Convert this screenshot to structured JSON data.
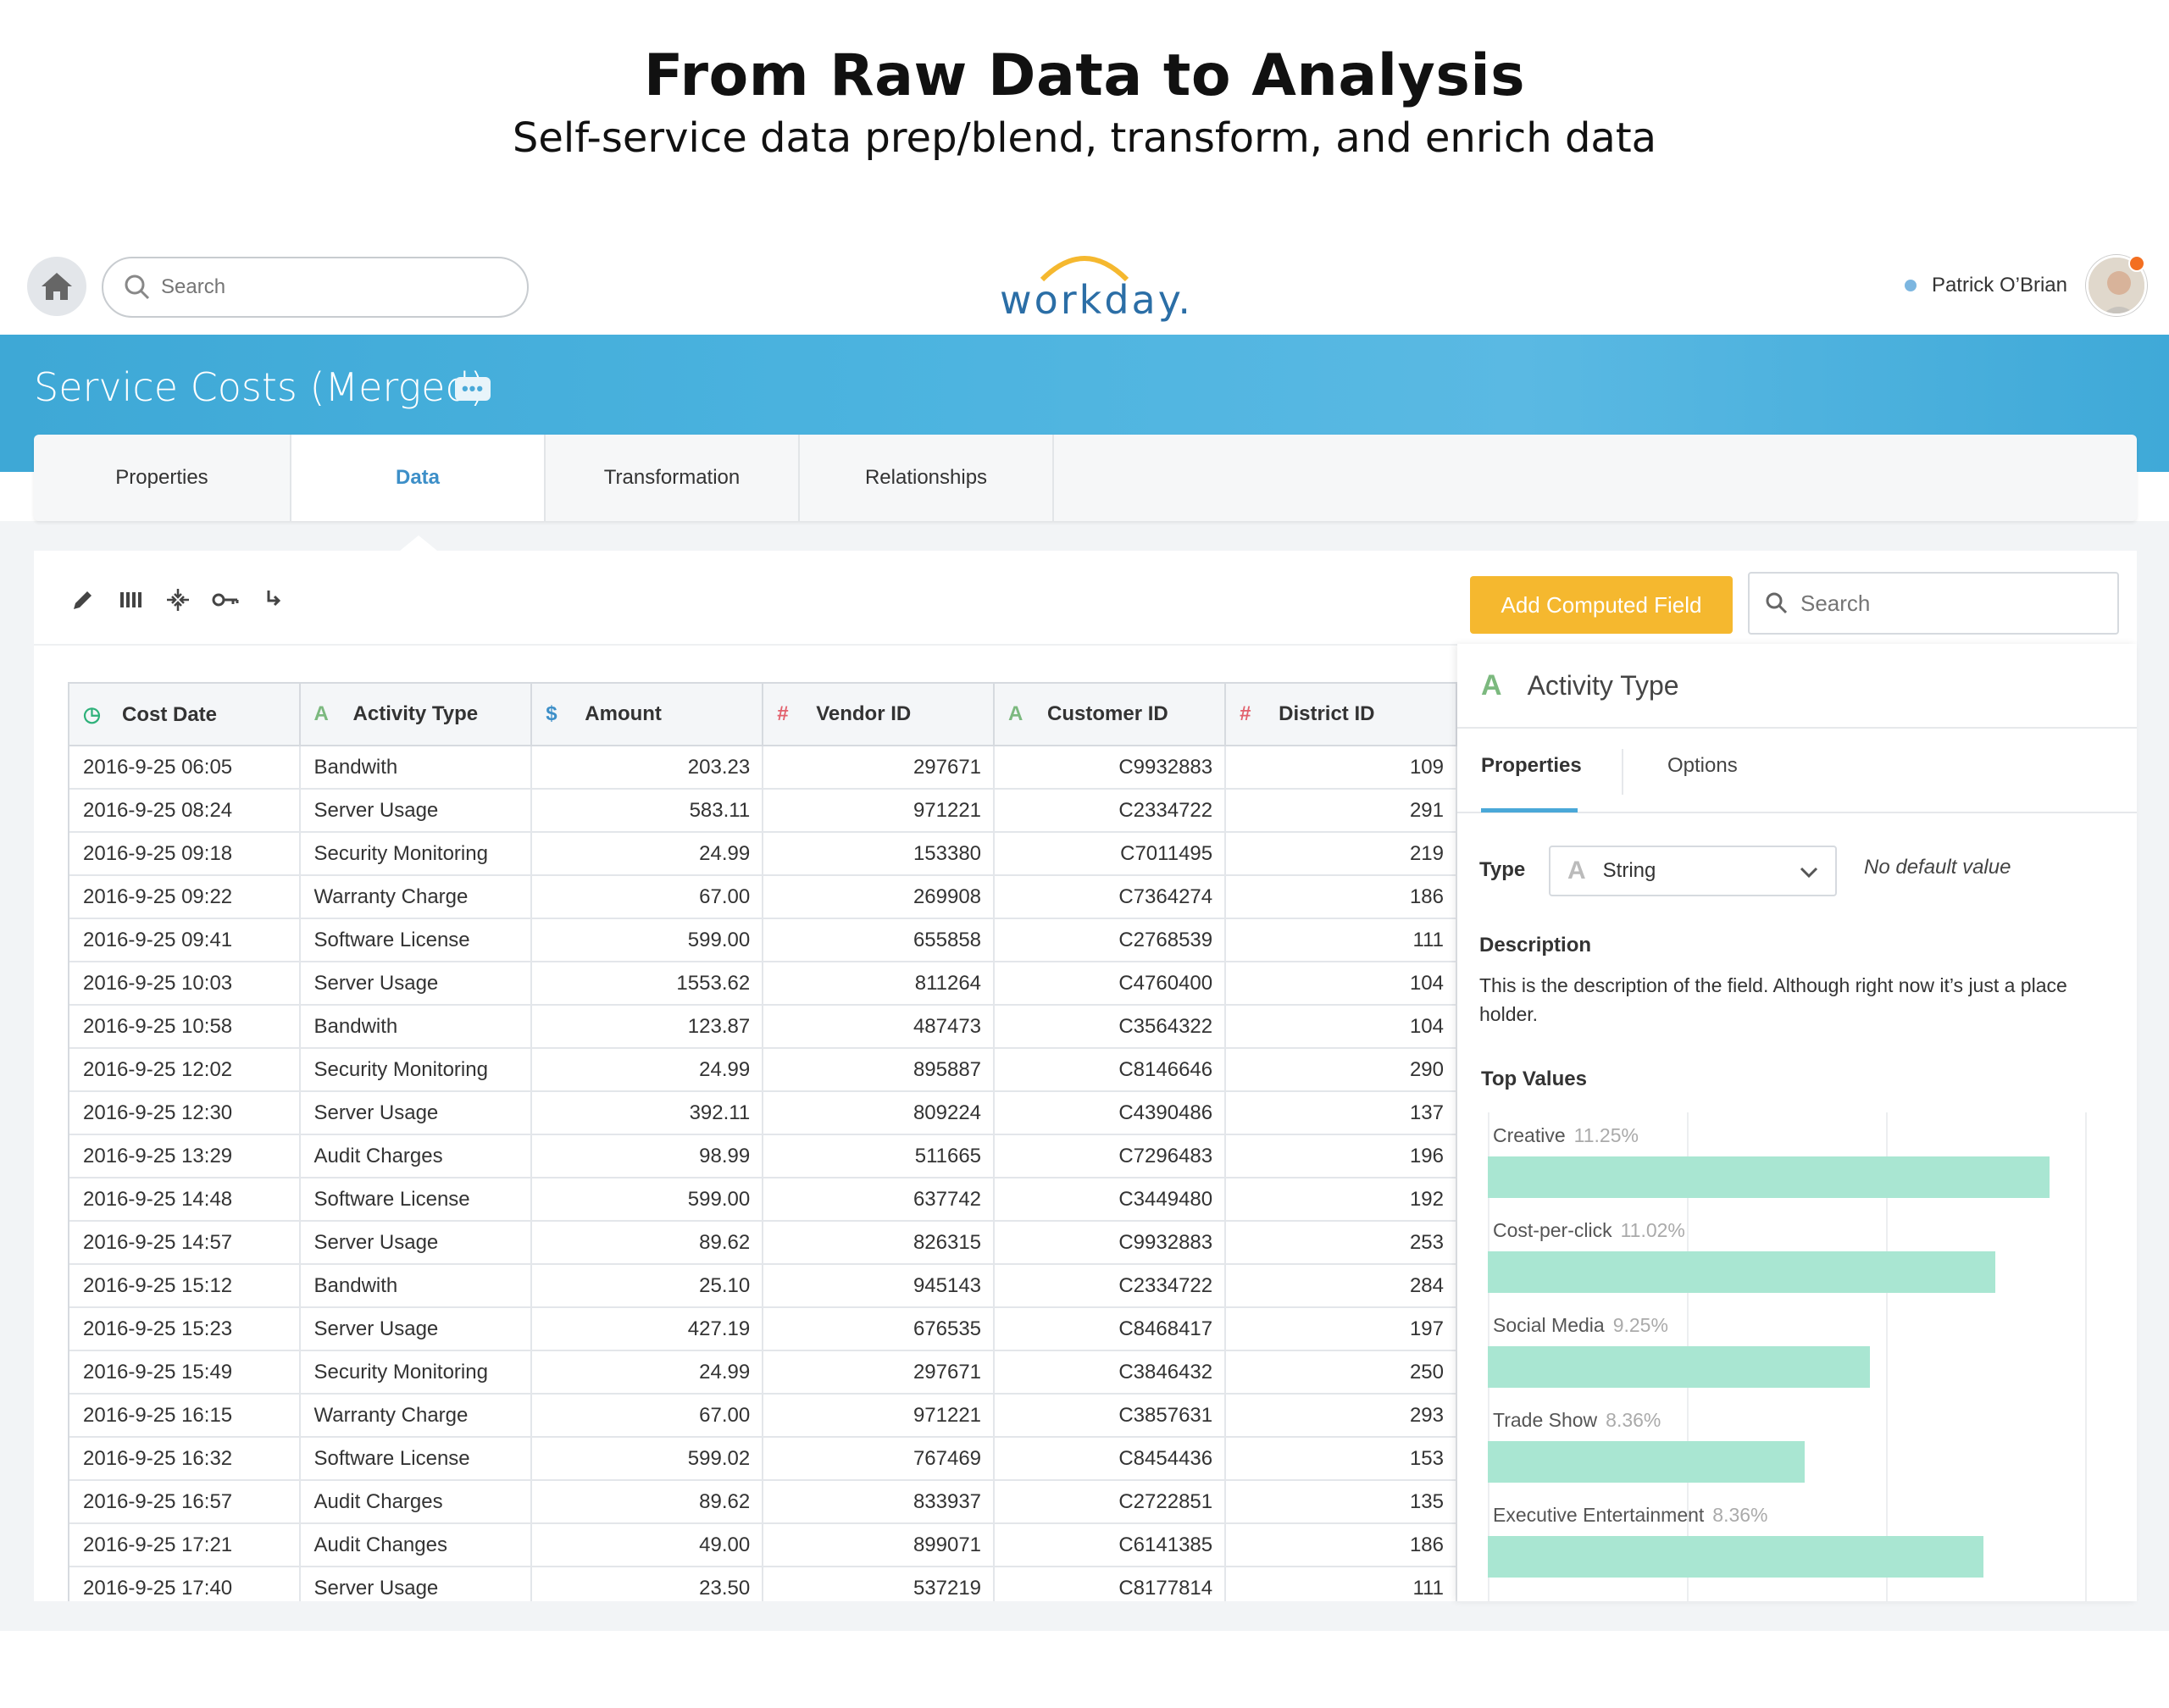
{
  "hero": {
    "title": "From Raw Data to Analysis",
    "subtitle": "Self-service data prep/blend, transform, and enrich data"
  },
  "topbar": {
    "search_placeholder": "Search",
    "logo": "workday.",
    "user_name": "Patrick O’Brian"
  },
  "header": {
    "title": "Service Costs (Merged)",
    "more_label": "•••"
  },
  "tabs": [
    {
      "label": "Properties"
    },
    {
      "label": "Data"
    },
    {
      "label": "Transformation"
    },
    {
      "label": "Relationships"
    }
  ],
  "toolbar": {
    "add_button": "Add Computed Field",
    "search_placeholder": "Search"
  },
  "table": {
    "columns": [
      {
        "label": "Cost Date",
        "icon": "◷",
        "icon_color": "#2eb17a"
      },
      {
        "label": "Activity Type",
        "icon": "A",
        "icon_color": "#7cb97f"
      },
      {
        "label": "Amount",
        "icon": "$",
        "icon_color": "#3d8fc8"
      },
      {
        "label": "Vendor ID",
        "icon": "#",
        "icon_color": "#e2616d"
      },
      {
        "label": "Customer ID",
        "icon": "A",
        "icon_color": "#7cb97f"
      },
      {
        "label": "District ID",
        "icon": "#",
        "icon_color": "#e2616d"
      }
    ],
    "rows": [
      [
        "2016-9-25 06:05",
        "Bandwith",
        "203.23",
        "297671",
        "C9932883",
        "109"
      ],
      [
        "2016-9-25 08:24",
        "Server Usage",
        "583.11",
        "971221",
        "C2334722",
        "291"
      ],
      [
        "2016-9-25 09:18",
        "Security Monitoring",
        "24.99",
        "153380",
        "C7011495",
        "219"
      ],
      [
        "2016-9-25 09:22",
        "Warranty Charge",
        "67.00",
        "269908",
        "C7364274",
        "186"
      ],
      [
        "2016-9-25 09:41",
        "Software License",
        "599.00",
        "655858",
        "C2768539",
        "111"
      ],
      [
        "2016-9-25 10:03",
        "Server Usage",
        "1553.62",
        "811264",
        "C4760400",
        "104"
      ],
      [
        "2016-9-25 10:58",
        "Bandwith",
        "123.87",
        "487473",
        "C3564322",
        "104"
      ],
      [
        "2016-9-25 12:02",
        "Security Monitoring",
        "24.99",
        "895887",
        "C8146646",
        "290"
      ],
      [
        "2016-9-25 12:30",
        "Server Usage",
        "392.11",
        "809224",
        "C4390486",
        "137"
      ],
      [
        "2016-9-25 13:29",
        "Audit Charges",
        "98.99",
        "511665",
        "C7296483",
        "196"
      ],
      [
        "2016-9-25 14:48",
        "Software License",
        "599.00",
        "637742",
        "C3449480",
        "192"
      ],
      [
        "2016-9-25 14:57",
        "Server Usage",
        "89.62",
        "826315",
        "C9932883",
        "253"
      ],
      [
        "2016-9-25 15:12",
        "Bandwith",
        "25.10",
        "945143",
        "C2334722",
        "284"
      ],
      [
        "2016-9-25 15:23",
        "Server Usage",
        "427.19",
        "676535",
        "C8468417",
        "197"
      ],
      [
        "2016-9-25 15:49",
        "Security Monitoring",
        "24.99",
        "297671",
        "C3846432",
        "250"
      ],
      [
        "2016-9-25 16:15",
        "Warranty Charge",
        "67.00",
        "971221",
        "C3857631",
        "293"
      ],
      [
        "2016-9-25 16:32",
        "Software License",
        "599.02",
        "767469",
        "C8454436",
        "153"
      ],
      [
        "2016-9-25 16:57",
        "Audit Charges",
        "89.62",
        "833937",
        "C2722851",
        "135"
      ],
      [
        "2016-9-25 17:21",
        "Audit Changes",
        "49.00",
        "899071",
        "C6141385",
        "186"
      ],
      [
        "2016-9-25 17:40",
        "Server Usage",
        "23.50",
        "537219",
        "C8177814",
        "111"
      ]
    ]
  },
  "panel": {
    "icon": "A",
    "title": "Activity Type",
    "tabs": [
      "Properties",
      "Options"
    ],
    "type_label": "Type",
    "type_icon": "A",
    "type_value": "String",
    "default_note": "No default value",
    "description_label": "Description",
    "description": "This is the description of the field. Although right now it’s just a place holder.",
    "top_values_label": "Top Values"
  },
  "chart_data": {
    "type": "bar",
    "title": "Top Values",
    "categories": [
      "Creative",
      "Cost-per-click",
      "Social Media",
      "Trade Show",
      "Executive Entertainment"
    ],
    "values": [
      11.25,
      11.02,
      9.25,
      8.36,
      8.36
    ],
    "value_labels": [
      "11.25%",
      "11.02%",
      "9.25%",
      "8.36%",
      "8.36%"
    ],
    "bar_fill": [
      0.94,
      0.85,
      0.64,
      0.53,
      0.83
    ],
    "bar_color": "#a9e6d2"
  },
  "colors": {
    "accent_blue": "#4aa8d8",
    "add_button": "#f5b82f"
  }
}
